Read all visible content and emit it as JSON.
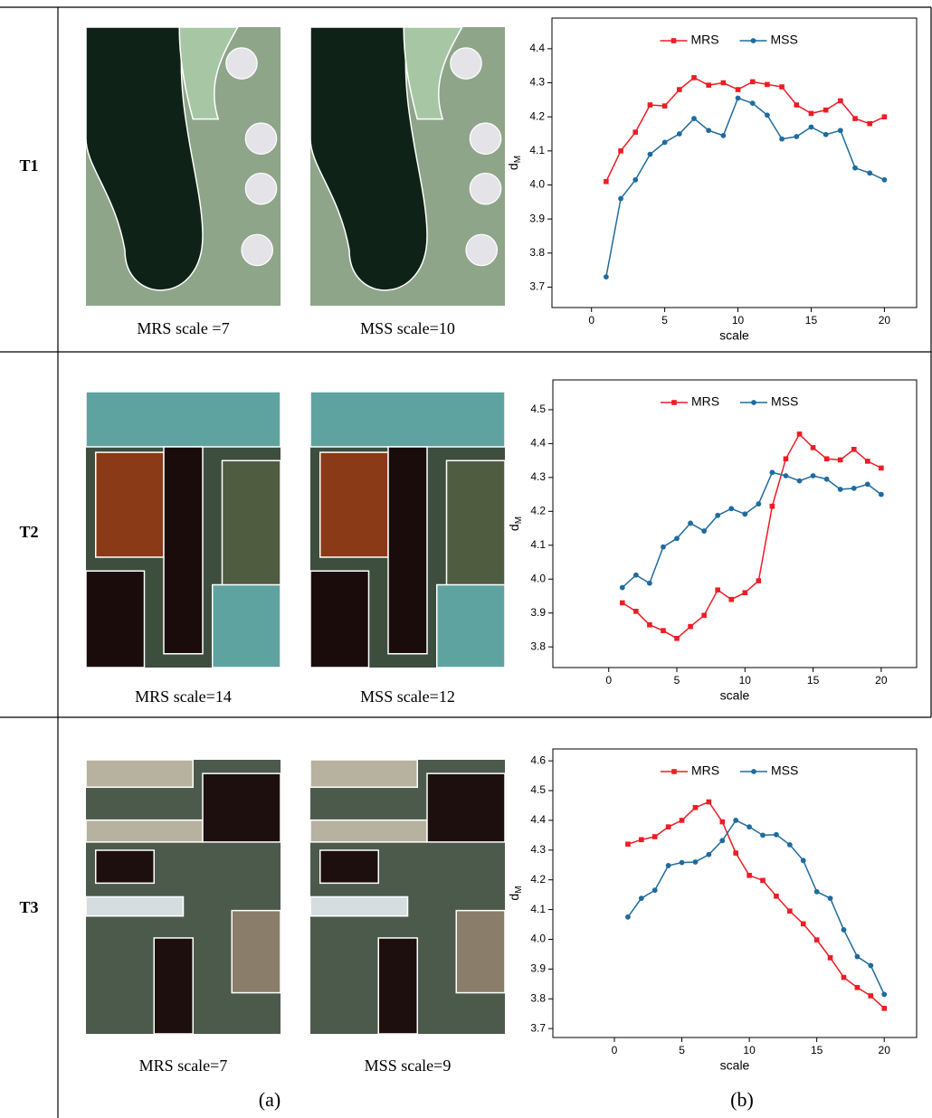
{
  "table": {
    "rows": [
      {
        "label": "T1",
        "captions": [
          "MRS scale =7",
          "MSS scale=10"
        ]
      },
      {
        "label": "T2",
        "captions": [
          "MRS scale=14",
          "MSS scale=12"
        ]
      },
      {
        "label": "T3",
        "captions": [
          "MRS scale=7",
          "MSS scale=9"
        ]
      }
    ]
  },
  "panel_labels": [
    "(a)",
    "(b)"
  ],
  "chart_data": [
    {
      "type": "line",
      "xlabel": "scale",
      "ylabel": "d",
      "ylabel_subscript": "M",
      "legend": "upper center",
      "x": [
        1,
        2,
        3,
        4,
        5,
        6,
        7,
        8,
        9,
        10,
        11,
        12,
        13,
        14,
        15,
        16,
        17,
        18,
        19,
        20
      ],
      "xlim": [
        -2.7,
        22.2
      ],
      "ylim": [
        3.64,
        4.49
      ],
      "xticks": [
        0,
        5,
        10,
        15,
        20
      ],
      "yticks": [
        3.7,
        3.8,
        3.9,
        {
          "value": 4,
          "label": "4.0"
        },
        4.1,
        4.2,
        4.3,
        4.4
      ],
      "series": [
        {
          "name": "MRS",
          "color": "#ee1c25",
          "marker": "square",
          "values": [
            4.01,
            4.1,
            4.155,
            4.235,
            4.232,
            4.28,
            4.315,
            4.293,
            4.3,
            4.28,
            4.303,
            4.295,
            4.288,
            4.235,
            4.21,
            4.22,
            4.247,
            4.195,
            4.18,
            4.2
          ]
        },
        {
          "name": "MSS",
          "color": "#1f6b9e",
          "marker": "circle",
          "values": [
            3.73,
            3.96,
            4.015,
            4.09,
            4.125,
            4.15,
            4.195,
            4.16,
            4.145,
            4.255,
            4.24,
            4.205,
            4.135,
            4.142,
            4.17,
            4.148,
            4.16,
            4.05,
            4.035,
            4.015
          ]
        }
      ]
    },
    {
      "type": "line",
      "xlabel": "scale",
      "ylabel": "d",
      "ylabel_subscript": "M",
      "legend": "upper center",
      "x": [
        1,
        2,
        3,
        4,
        5,
        6,
        7,
        8,
        9,
        10,
        11,
        12,
        13,
        14,
        15,
        16,
        17,
        18,
        19,
        20
      ],
      "xlim": [
        -4.1,
        22.6
      ],
      "ylim": [
        3.739,
        4.588
      ],
      "xticks": [
        0,
        5,
        10,
        15,
        20
      ],
      "yticks": [
        3.8,
        3.9,
        {
          "value": 4,
          "label": "4.0"
        },
        4.1,
        4.2,
        4.3,
        4.4,
        4.5
      ],
      "series": [
        {
          "name": "MRS",
          "color": "#ee1c25",
          "marker": "square",
          "values": [
            3.93,
            3.905,
            3.865,
            3.848,
            3.825,
            3.86,
            3.893,
            3.968,
            3.94,
            3.96,
            3.995,
            4.215,
            4.355,
            4.428,
            4.388,
            4.355,
            4.352,
            4.383,
            4.348,
            4.328
          ]
        },
        {
          "name": "MSS",
          "color": "#1f6b9e",
          "marker": "circle",
          "values": [
            3.975,
            4.012,
            3.988,
            4.095,
            4.12,
            4.165,
            4.142,
            4.188,
            4.208,
            4.192,
            4.222,
            4.315,
            4.305,
            4.29,
            4.305,
            4.295,
            4.265,
            4.268,
            4.28,
            4.25
          ]
        }
      ]
    },
    {
      "type": "line",
      "xlabel": "scale",
      "ylabel": "d",
      "ylabel_subscript": "M",
      "legend": "upper center",
      "x": [
        1,
        2,
        3,
        4,
        5,
        6,
        7,
        8,
        9,
        10,
        11,
        12,
        13,
        14,
        15,
        16,
        17,
        18,
        19,
        20
      ],
      "xlim": [
        -4.56,
        22.4
      ],
      "ylim": [
        3.67,
        4.64
      ],
      "xticks": [
        0,
        5,
        10,
        15,
        20
      ],
      "yticks": [
        3.7,
        3.8,
        3.9,
        {
          "value": 4,
          "label": "4.0"
        },
        4.1,
        4.2,
        4.3,
        4.4,
        4.5,
        4.6
      ],
      "series": [
        {
          "name": "MRS",
          "color": "#ee1c25",
          "marker": "square",
          "values": [
            4.32,
            4.335,
            4.345,
            4.378,
            4.4,
            4.443,
            4.462,
            4.395,
            4.29,
            4.215,
            4.198,
            4.145,
            4.095,
            4.052,
            3.998,
            3.938,
            3.872,
            3.838,
            3.81,
            3.768
          ]
        },
        {
          "name": "MSS",
          "color": "#1f6b9e",
          "marker": "circle",
          "values": [
            4.075,
            4.138,
            4.165,
            4.248,
            4.258,
            4.26,
            4.285,
            4.332,
            4.4,
            4.378,
            4.35,
            4.352,
            4.318,
            4.265,
            4.16,
            4.138,
            4.032,
            3.942,
            3.912,
            3.815
          ]
        }
      ]
    }
  ]
}
